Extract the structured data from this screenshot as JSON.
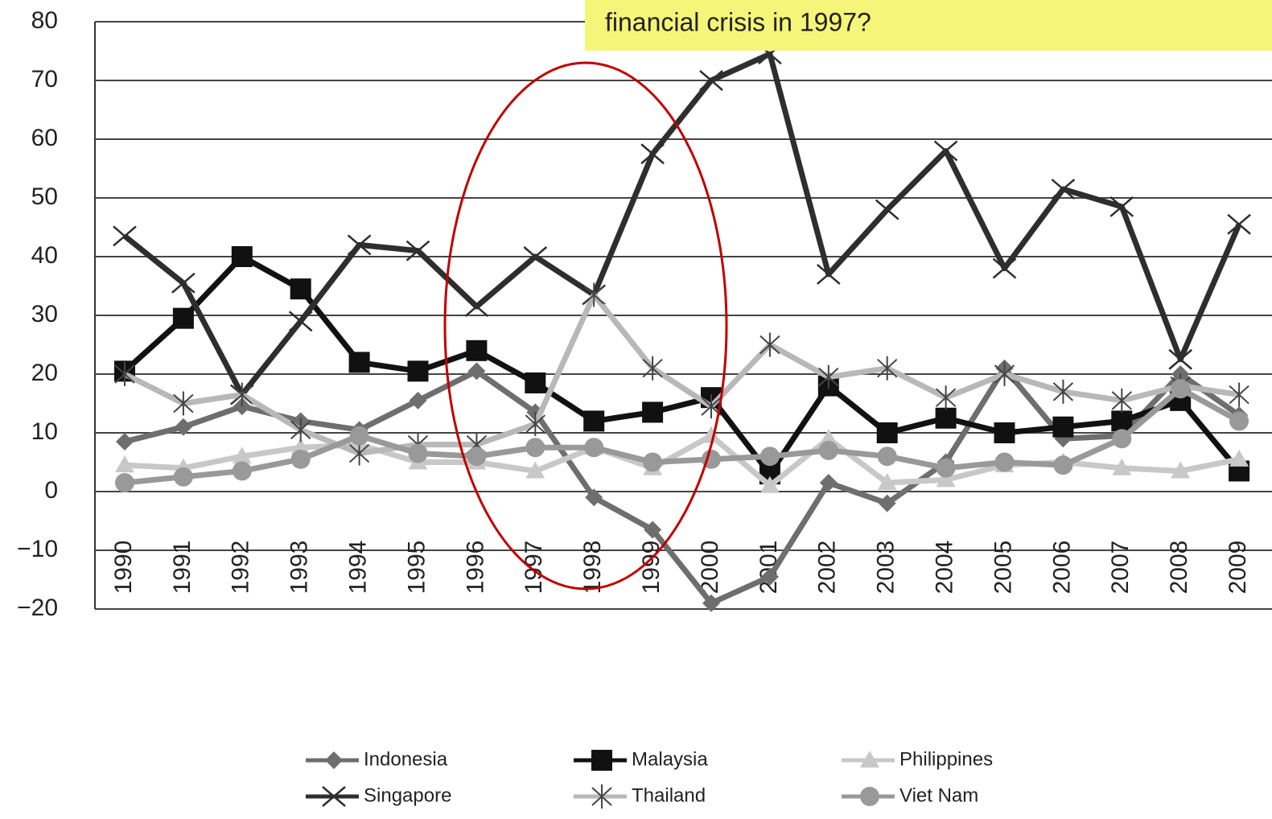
{
  "chart_data": {
    "type": "line",
    "annotation": "financial crisis in 1997?",
    "categories": [
      "1990",
      "1991",
      "1992",
      "1993",
      "1994",
      "1995",
      "1996",
      "1997",
      "1998",
      "1999",
      "2000",
      "2001",
      "2002",
      "2003",
      "2004",
      "2005",
      "2006",
      "2007",
      "2008",
      "2009"
    ],
    "ylim": [
      -20,
      80
    ],
    "yticks": [
      {
        "value": -20,
        "label": "−20"
      },
      {
        "value": -10,
        "label": "−10"
      },
      0,
      10,
      20,
      30,
      40,
      50,
      60,
      70,
      80
    ],
    "grid": true,
    "series": [
      {
        "name": "Indonesia",
        "color": "#6e6e6e",
        "marker": "diamond",
        "values": [
          8.5,
          11,
          14.5,
          12,
          10.5,
          15.5,
          20.5,
          13.5,
          -1,
          -6.5,
          -19,
          -14.5,
          1.5,
          -2,
          5,
          21,
          9,
          9.5,
          20,
          13
        ]
      },
      {
        "name": "Malaysia",
        "color": "#111111",
        "marker": "square",
        "values": [
          20.5,
          29.5,
          40,
          34.5,
          22,
          20.5,
          24,
          18.5,
          12,
          13.5,
          16,
          3,
          18,
          10,
          12.5,
          10,
          11,
          12,
          15.5,
          3.5
        ]
      },
      {
        "name": "Philippines",
        "color": "#c8c8c8",
        "marker": "triangle",
        "values": [
          4.5,
          4,
          6,
          7.5,
          8,
          5,
          5,
          3.5,
          7.5,
          4,
          9.5,
          1,
          9,
          1.5,
          2,
          4.5,
          5,
          4,
          3.5,
          5.5
        ]
      },
      {
        "name": "Singapore",
        "color": "#2e2e2e",
        "marker": "x",
        "values": [
          43.5,
          35.5,
          16.5,
          29,
          42,
          41,
          31.5,
          40,
          33.5,
          57.5,
          70,
          74.5,
          37,
          48,
          58,
          38,
          51.5,
          48.5,
          22.5,
          45.5
        ]
      },
      {
        "name": "Thailand",
        "color": "#b8b8b8",
        "marker": "star",
        "values": [
          20,
          15,
          16.5,
          10.5,
          6.5,
          8,
          8,
          11.5,
          33.5,
          21,
          14.5,
          25,
          19.5,
          21,
          16,
          20,
          17,
          15.5,
          18,
          16.5
        ]
      },
      {
        "name": "Viet Nam",
        "color": "#999999",
        "marker": "circle",
        "values": [
          1.5,
          2.5,
          3.5,
          5.5,
          9.5,
          6.5,
          6,
          7.5,
          7.5,
          5,
          5.5,
          6,
          7,
          6,
          4,
          5,
          4.5,
          9,
          17.5,
          12
        ]
      }
    ]
  }
}
